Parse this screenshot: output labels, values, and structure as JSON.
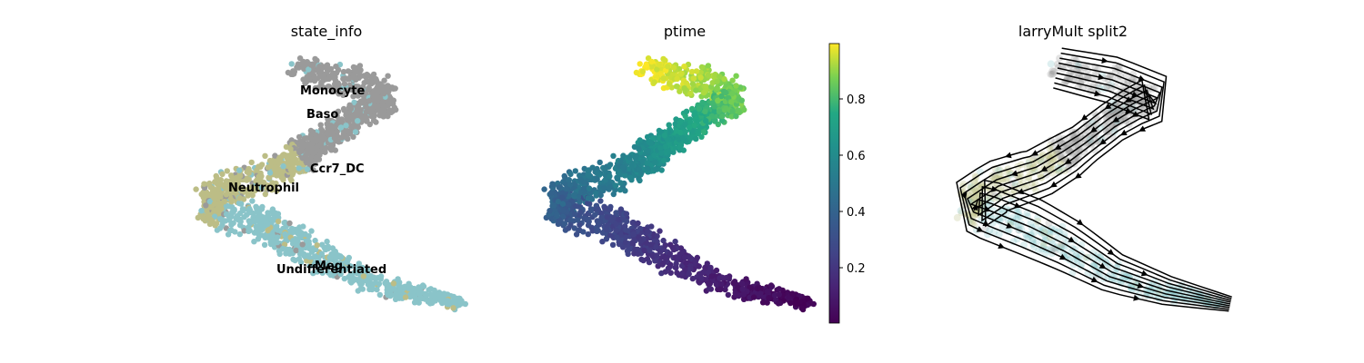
{
  "chart_data": [
    {
      "type": "scatter",
      "title": "state_info",
      "xlabel": "",
      "ylabel": "",
      "legend": "on data",
      "categories": [
        {
          "name": "Monocyte",
          "color": "#9a9a9a"
        },
        {
          "name": "Baso",
          "color": "#9a9a9a"
        },
        {
          "name": "Ccr7_DC",
          "color": "#bcbd86"
        },
        {
          "name": "Neutrophil",
          "color": "#bcbd86"
        },
        {
          "name": "Meg",
          "color": "#8ac4c9"
        },
        {
          "name": "Undifferentiated",
          "color": "#8ac4c9"
        }
      ]
    },
    {
      "type": "scatter",
      "title": "ptime",
      "xlabel": "",
      "ylabel": "",
      "colorbar": {
        "colormap": "viridis",
        "range": [
          0,
          1
        ],
        "ticks": [
          "0.2",
          "0.4",
          "0.6",
          "0.8"
        ]
      }
    },
    {
      "type": "streamplot",
      "title": "larryMult split2",
      "xlabel": "",
      "ylabel": ""
    }
  ]
}
